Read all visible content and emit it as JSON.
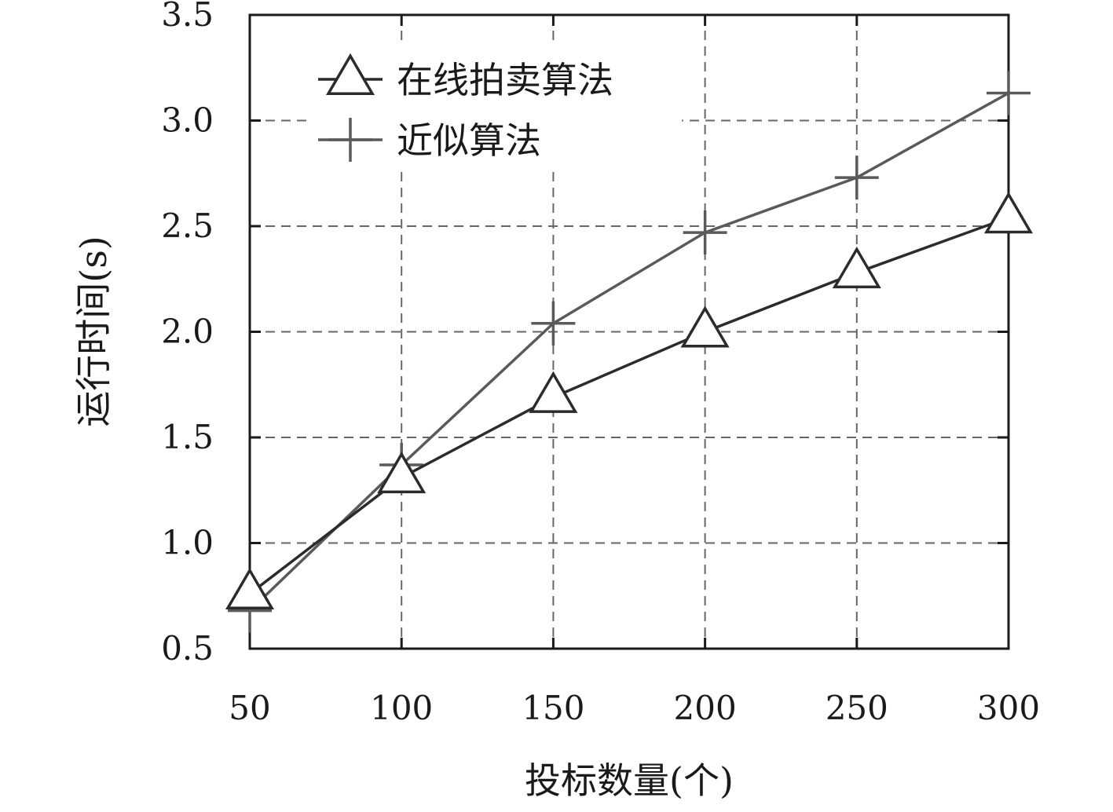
{
  "chart_data": {
    "type": "line",
    "title": "",
    "xlabel": "投标数量(个)",
    "ylabel": "运行时间(s)",
    "x": [
      50,
      100,
      150,
      200,
      250,
      300
    ],
    "xticks": [
      "50",
      "100",
      "150",
      "200",
      "250",
      "300"
    ],
    "yticks": [
      "0.5",
      "1.0",
      "1.5",
      "2.0",
      "2.5",
      "3.0",
      "3.5"
    ],
    "ylim": [
      0.5,
      3.5
    ],
    "grid": true,
    "legend_position": "top-left",
    "series": [
      {
        "name": "在线拍卖算法",
        "marker": "triangle",
        "color": "#2b2b2b",
        "values": [
          0.76,
          1.31,
          1.69,
          2.0,
          2.28,
          2.54
        ]
      },
      {
        "name": "近似算法",
        "marker": "plus",
        "color": "#5a5a5a",
        "values": [
          0.68,
          1.37,
          2.04,
          2.47,
          2.73,
          3.13
        ]
      }
    ]
  }
}
